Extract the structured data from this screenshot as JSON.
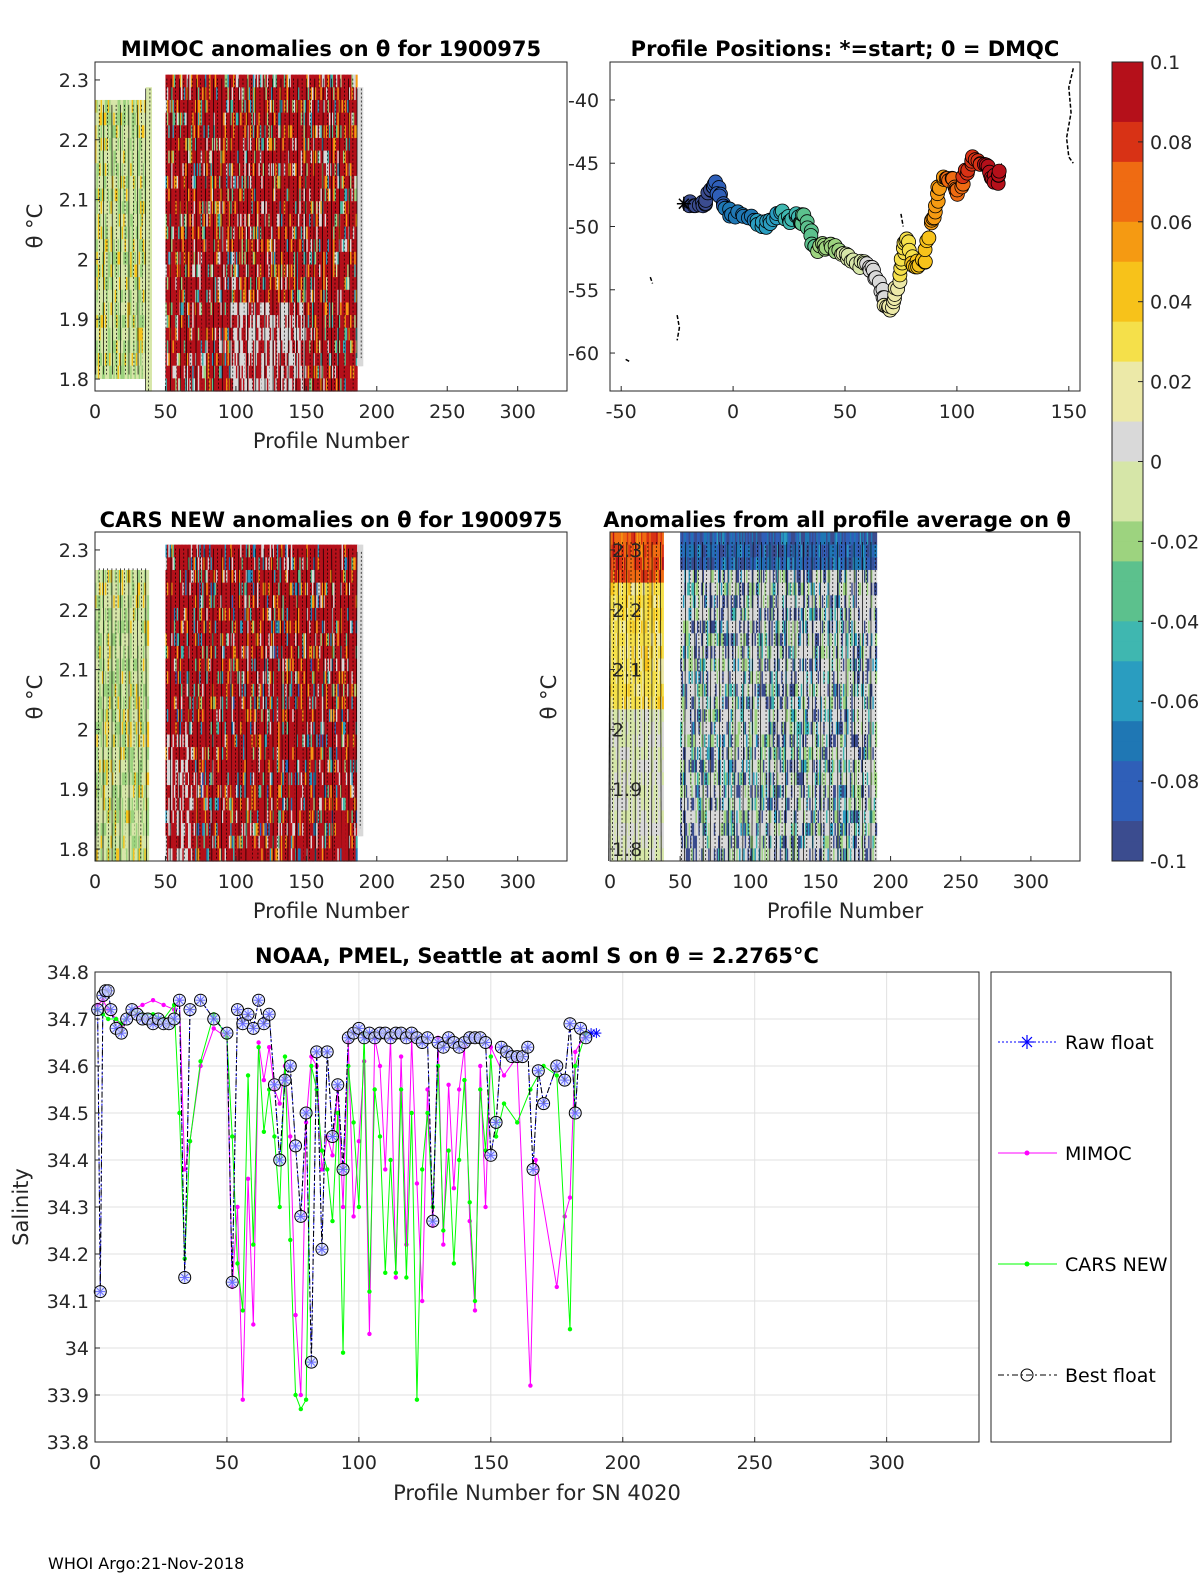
{
  "footer": "WHOI Argo:21-Nov-2018",
  "colors": {
    "raw_float": "#0000ff",
    "mimoc": "#ff00ff",
    "cars_new": "#00ff00",
    "best_float": "#000000",
    "colormap": [
      "#3b4c8f",
      "#2f5fb8",
      "#1f77b4",
      "#2a9dc0",
      "#3fb7b0",
      "#5cc18d",
      "#9dd37f",
      "#d6e6a8",
      "#d9d9d9",
      "#ece9a8",
      "#f5e04a",
      "#f7c21a",
      "#f59a12",
      "#ef6b12",
      "#d83215",
      "#b5101a"
    ]
  },
  "colorbar": {
    "ticks": [
      "0.1",
      "0.08",
      "0.06",
      "0.04",
      "0.02",
      "0",
      "-0.02",
      "-0.04",
      "-0.06",
      "-0.08",
      "-0.1"
    ]
  },
  "panels": {
    "mimoc": {
      "title": "MIMOC anomalies on θ  for 1900975",
      "xlabel": "Profile Number",
      "ylabel": "θ °C",
      "xticks": [
        "0",
        "50",
        "100",
        "150",
        "200",
        "250",
        "300"
      ],
      "yticks": [
        "2.3",
        "2.2",
        "2.1",
        "2",
        "1.9",
        "1.8"
      ]
    },
    "positions": {
      "title": "Profile Positions: *=start; 0 = DMQC",
      "xticks": [
        "-50",
        "0",
        "50",
        "100",
        "150"
      ],
      "yticks": [
        "-40",
        "-45",
        "-50",
        "-55",
        "-60"
      ]
    },
    "cars": {
      "title": "CARS NEW anomalies on θ for 1900975",
      "xlabel": "Profile Number",
      "ylabel": "θ °C",
      "xticks": [
        "0",
        "50",
        "100",
        "150",
        "200",
        "250",
        "300"
      ],
      "yticks": [
        "2.3",
        "2.2",
        "2.1",
        "2",
        "1.9",
        "1.8"
      ]
    },
    "average": {
      "title": "Anomalies from all profile average on θ",
      "xlabel": "Profile Number",
      "ylabel": "θ °C",
      "xticks": [
        "0",
        "50",
        "100",
        "150",
        "200",
        "250",
        "300"
      ],
      "yticks": [
        "2.3",
        "2.2",
        "2.1",
        "2",
        "1.9",
        "1.8"
      ]
    }
  },
  "chart_data": [
    {
      "type": "heatmap",
      "title": "MIMOC anomalies on θ  for 1900975",
      "xlabel": "Profile Number",
      "ylabel": "θ °C",
      "xlim": [
        0,
        335
      ],
      "ylim": [
        1.78,
        2.33
      ],
      "clim": [
        -0.1,
        0.1
      ],
      "data_x_range": [
        0,
        190
      ],
      "note": "anomaly field mostly 0 to +0.1 for profiles 50-185, near 0 / slightly negative for 0-35"
    },
    {
      "type": "scatter",
      "title": "Profile Positions: *=start; 0 = DMQC",
      "xlim": [
        -55,
        155
      ],
      "ylim": [
        -63,
        -37
      ],
      "start": [
        -22,
        -48.2
      ],
      "track": [
        [
          -20,
          -48.2
        ],
        [
          -15,
          -48.5
        ],
        [
          -12,
          -48
        ],
        [
          -10,
          -47
        ],
        [
          -8,
          -46.5
        ],
        [
          -6,
          -47.5
        ],
        [
          -4,
          -48.8
        ],
        [
          0,
          -49
        ],
        [
          5,
          -49.2
        ],
        [
          10,
          -49.5
        ],
        [
          15,
          -50
        ],
        [
          18,
          -49.5
        ],
        [
          22,
          -49
        ],
        [
          26,
          -49.5
        ],
        [
          28,
          -49
        ],
        [
          30,
          -50
        ],
        [
          32,
          -49
        ],
        [
          35,
          -51
        ],
        [
          38,
          -52
        ],
        [
          40,
          -51.5
        ],
        [
          44,
          -51.5
        ],
        [
          48,
          -52
        ],
        [
          52,
          -52.5
        ],
        [
          56,
          -53
        ],
        [
          60,
          -53
        ],
        [
          63,
          -53.5
        ],
        [
          66,
          -55
        ],
        [
          68,
          -56
        ],
        [
          70,
          -56.5
        ],
        [
          72,
          -55.5
        ],
        [
          75,
          -54
        ],
        [
          76,
          -52
        ],
        [
          78,
          -51
        ],
        [
          80,
          -53
        ],
        [
          83,
          -53
        ],
        [
          86,
          -52.5
        ],
        [
          88,
          -50
        ],
        [
          90,
          -49
        ],
        [
          92,
          -47
        ],
        [
          95,
          -46
        ],
        [
          98,
          -46.5
        ],
        [
          100,
          -47.5
        ],
        [
          103,
          -46
        ],
        [
          106,
          -45
        ],
        [
          108,
          -44.5
        ],
        [
          112,
          -45
        ],
        [
          115,
          -46
        ],
        [
          118,
          -46.5
        ],
        [
          120,
          -45
        ]
      ],
      "clim": [
        -0.1,
        0.1
      ]
    },
    {
      "type": "heatmap",
      "title": "CARS NEW anomalies on θ for 1900975",
      "xlabel": "Profile Number",
      "ylabel": "θ °C",
      "xlim": [
        0,
        335
      ],
      "ylim": [
        1.78,
        2.33
      ],
      "clim": [
        -0.1,
        0.1
      ],
      "data_x_range": [
        0,
        190
      ]
    },
    {
      "type": "heatmap",
      "title": "Anomalies from all profile average on θ",
      "xlabel": "Profile Number",
      "ylabel": "θ °C",
      "xlim": [
        0,
        335
      ],
      "ylim": [
        1.78,
        2.33
      ],
      "clim": [
        -0.1,
        0.1
      ],
      "data_x_range": [
        0,
        190
      ]
    },
    {
      "type": "line",
      "title": "NOAA, PMEL, Seattle at aoml S on θ = 2.2765°C",
      "xlabel": "Profile Number for SN 4020",
      "ylabel": "Salinity",
      "xlim": [
        0,
        335
      ],
      "ylim": [
        33.8,
        34.8
      ],
      "xticks": [
        "0",
        "50",
        "100",
        "150",
        "200",
        "250",
        "300"
      ],
      "yticks": [
        "34.8",
        "34.7",
        "34.6",
        "34.5",
        "34.4",
        "34.3",
        "34.2",
        "34.1",
        "34",
        "33.9",
        "33.8"
      ],
      "grid": true,
      "legend": "right-outside",
      "series": [
        {
          "name": "Raw float",
          "x": [
            1,
            2,
            3,
            4,
            5,
            6,
            8,
            10,
            12,
            14,
            16,
            18,
            20,
            22,
            24,
            26,
            28,
            30,
            32,
            34,
            36,
            40,
            45,
            50,
            52,
            54,
            56,
            58,
            60,
            62,
            64,
            66,
            68,
            70,
            72,
            74,
            76,
            78,
            80,
            82,
            84,
            86,
            88,
            90,
            92,
            94,
            96,
            98,
            100,
            102,
            104,
            106,
            108,
            110,
            112,
            114,
            116,
            118,
            120,
            122,
            124,
            126,
            128,
            130,
            132,
            134,
            136,
            138,
            140,
            142,
            144,
            146,
            148,
            150,
            152,
            154,
            156,
            158,
            160,
            162,
            164,
            166,
            168,
            170,
            175,
            178,
            180,
            182,
            184,
            186,
            188,
            190
          ],
          "y": [
            34.72,
            34.12,
            34.75,
            34.76,
            34.76,
            34.72,
            34.68,
            34.67,
            34.7,
            34.72,
            34.71,
            34.7,
            34.7,
            34.69,
            34.7,
            34.69,
            34.69,
            34.7,
            34.74,
            34.15,
            34.72,
            34.74,
            34.7,
            34.67,
            34.14,
            34.72,
            34.69,
            34.71,
            34.68,
            34.74,
            34.69,
            34.71,
            34.56,
            34.4,
            34.57,
            34.6,
            34.43,
            34.28,
            34.5,
            33.97,
            34.63,
            34.21,
            34.63,
            34.45,
            34.56,
            34.38,
            34.66,
            34.67,
            34.68,
            34.66,
            34.67,
            34.66,
            34.67,
            34.67,
            34.66,
            34.67,
            34.67,
            34.66,
            34.67,
            34.66,
            34.65,
            34.66,
            34.27,
            34.65,
            34.64,
            34.66,
            34.65,
            34.64,
            34.65,
            34.66,
            34.66,
            34.66,
            34.65,
            34.41,
            34.48,
            34.64,
            34.63,
            34.62,
            34.62,
            34.62,
            34.64,
            34.38,
            34.59,
            34.52,
            34.6,
            34.57,
            34.69,
            34.5,
            34.68,
            34.66,
            34.67,
            34.67
          ]
        },
        {
          "name": "MIMOC",
          "x": [
            1,
            3,
            5,
            8,
            10,
            14,
            18,
            22,
            26,
            30,
            32,
            34,
            36,
            40,
            45,
            50,
            52,
            54,
            56,
            58,
            60,
            62,
            64,
            66,
            68,
            70,
            72,
            74,
            76,
            78,
            80,
            82,
            84,
            86,
            88,
            90,
            92,
            94,
            96,
            98,
            100,
            102,
            104,
            106,
            108,
            110,
            112,
            114,
            116,
            118,
            120,
            122,
            124,
            126,
            128,
            130,
            132,
            134,
            136,
            138,
            140,
            142,
            144,
            146,
            148,
            150,
            155,
            160,
            165,
            167,
            175,
            178,
            180,
            182,
            186
          ],
          "y": [
            34.73,
            34.74,
            34.72,
            34.7,
            34.68,
            34.72,
            34.73,
            34.74,
            34.73,
            34.72,
            34.74,
            34.38,
            34.44,
            34.6,
            34.68,
            34.66,
            34.13,
            34.3,
            33.89,
            34.36,
            34.05,
            34.65,
            34.57,
            34.64,
            34.55,
            34.52,
            34.6,
            34.45,
            34.07,
            33.9,
            34.48,
            34.62,
            34.6,
            34.38,
            34.45,
            34.41,
            34.55,
            34.3,
            34.65,
            34.28,
            34.44,
            34.61,
            34.03,
            34.66,
            34.6,
            34.38,
            34.66,
            34.15,
            34.62,
            34.22,
            34.66,
            34.35,
            34.1,
            34.55,
            34.26,
            34.66,
            34.22,
            34.56,
            34.34,
            34.55,
            34.64,
            34.27,
            34.08,
            34.6,
            34.3,
            34.64,
            34.58,
            34.62,
            33.92,
            34.4,
            34.13,
            34.28,
            34.32,
            34.63,
            34.67
          ]
        },
        {
          "name": "CARS NEW",
          "x": [
            1,
            3,
            5,
            8,
            10,
            14,
            18,
            22,
            26,
            30,
            32,
            34,
            36,
            40,
            45,
            50,
            52,
            54,
            56,
            58,
            60,
            62,
            64,
            66,
            68,
            70,
            72,
            74,
            76,
            78,
            80,
            82,
            84,
            86,
            88,
            90,
            92,
            94,
            96,
            98,
            100,
            102,
            104,
            106,
            108,
            110,
            112,
            114,
            116,
            118,
            120,
            122,
            124,
            126,
            128,
            130,
            132,
            134,
            136,
            138,
            140,
            142,
            144,
            146,
            148,
            150,
            152,
            155,
            160,
            165,
            170,
            175,
            180,
            182,
            186
          ],
          "y": [
            34.72,
            34.71,
            34.7,
            34.7,
            34.69,
            34.72,
            34.71,
            34.71,
            34.7,
            34.73,
            34.5,
            34.19,
            34.44,
            34.61,
            34.71,
            34.66,
            34.45,
            34.18,
            34.08,
            34.58,
            34.22,
            34.64,
            34.46,
            34.55,
            34.45,
            34.3,
            34.62,
            34.23,
            33.9,
            33.87,
            33.89,
            34.6,
            34.55,
            34.42,
            34.38,
            34.27,
            34.5,
            33.99,
            34.6,
            34.48,
            34.3,
            34.67,
            34.12,
            34.55,
            34.45,
            34.16,
            34.4,
            34.16,
            34.55,
            34.15,
            34.5,
            33.89,
            34.38,
            34.5,
            34.3,
            34.6,
            34.25,
            34.42,
            34.18,
            34.4,
            34.57,
            34.31,
            34.1,
            34.55,
            34.42,
            34.62,
            34.45,
            34.52,
            34.48,
            34.55,
            34.6,
            34.58,
            34.04,
            34.6,
            34.67
          ]
        },
        {
          "name": "Best float",
          "x": [
            1,
            2,
            3,
            4,
            5,
            6,
            8,
            10,
            12,
            14,
            16,
            18,
            20,
            22,
            24,
            26,
            28,
            30,
            32,
            34,
            36,
            40,
            45,
            50,
            52,
            54,
            56,
            58,
            60,
            62,
            64,
            66,
            68,
            70,
            72,
            74,
            76,
            78,
            80,
            82,
            84,
            86,
            88,
            90,
            92,
            94,
            96,
            98,
            100,
            102,
            104,
            106,
            108,
            110,
            112,
            114,
            116,
            118,
            120,
            122,
            124,
            126,
            128,
            130,
            132,
            134,
            136,
            138,
            140,
            142,
            144,
            146,
            148,
            150,
            152,
            154,
            156,
            158,
            160,
            162,
            164,
            166,
            168,
            170,
            175,
            178,
            180,
            182,
            184,
            186
          ],
          "y": [
            34.72,
            34.12,
            34.75,
            34.76,
            34.76,
            34.72,
            34.68,
            34.67,
            34.7,
            34.72,
            34.71,
            34.7,
            34.7,
            34.69,
            34.7,
            34.69,
            34.69,
            34.7,
            34.74,
            34.15,
            34.72,
            34.74,
            34.7,
            34.67,
            34.14,
            34.72,
            34.69,
            34.71,
            34.68,
            34.74,
            34.69,
            34.71,
            34.56,
            34.4,
            34.57,
            34.6,
            34.43,
            34.28,
            34.5,
            33.97,
            34.63,
            34.21,
            34.63,
            34.45,
            34.56,
            34.38,
            34.66,
            34.67,
            34.68,
            34.66,
            34.67,
            34.66,
            34.67,
            34.67,
            34.66,
            34.67,
            34.67,
            34.66,
            34.67,
            34.66,
            34.65,
            34.66,
            34.27,
            34.65,
            34.64,
            34.66,
            34.65,
            34.64,
            34.65,
            34.66,
            34.66,
            34.66,
            34.65,
            34.41,
            34.48,
            34.64,
            34.63,
            34.62,
            34.62,
            34.62,
            34.64,
            34.38,
            34.59,
            34.52,
            34.6,
            34.57,
            34.69,
            34.5,
            34.68,
            34.66
          ]
        }
      ]
    }
  ]
}
